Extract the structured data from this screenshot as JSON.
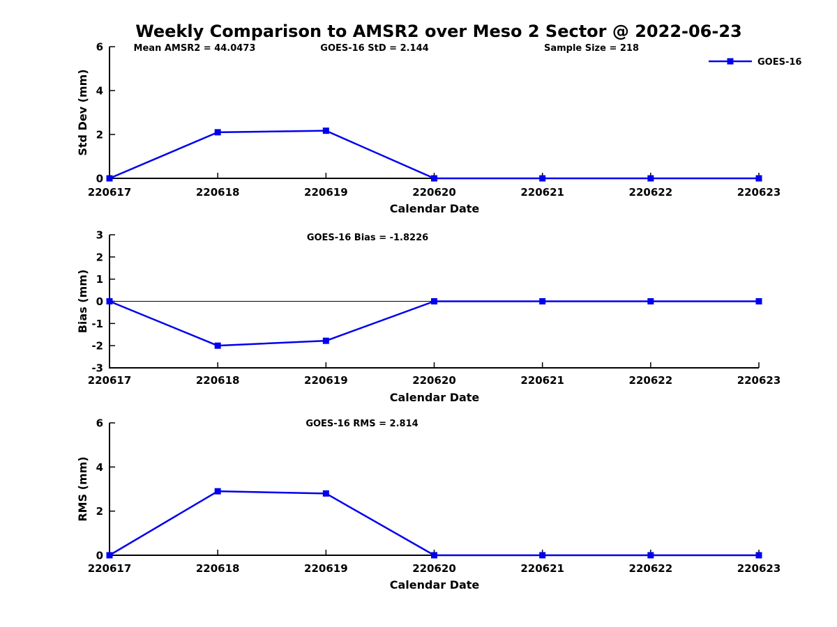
{
  "title": "Weekly Comparison to AMSR2 over Meso 2 Sector @ 2022-06-23",
  "legend": {
    "label": "GOES-16"
  },
  "colors": {
    "series": "#0000ee",
    "axis": "#000000",
    "text": "#000000",
    "background": "#ffffff"
  },
  "chart_data": [
    {
      "type": "line",
      "ylabel": "Std Dev (mm)",
      "xlabel": "Calendar Date",
      "ylim": [
        0,
        6
      ],
      "yticks": [
        "0",
        "2",
        "4",
        "6"
      ],
      "categories": [
        "220617",
        "220618",
        "220619",
        "220620",
        "220621",
        "220622",
        "220623"
      ],
      "series": [
        {
          "name": "GOES-16",
          "values": [
            0,
            2.1,
            2.17,
            0,
            0,
            0,
            0
          ]
        }
      ],
      "annotations": [
        "Mean AMSR2 = 44.0473",
        "GOES-16 StD = 2.144",
        "Sample Size = 218"
      ],
      "zero_line": false,
      "grid": false,
      "legend_position": "top-right"
    },
    {
      "type": "line",
      "ylabel": "Bias (mm)",
      "xlabel": "Calendar Date",
      "ylim": [
        -3,
        3
      ],
      "yticks": [
        "3",
        "2",
        "1",
        "0",
        "-1",
        "-2",
        "-3"
      ],
      "categories": [
        "220617",
        "220618",
        "220619",
        "220620",
        "220621",
        "220622",
        "220623"
      ],
      "series": [
        {
          "name": "GOES-16",
          "values": [
            0,
            -2.0,
            -1.78,
            0,
            0,
            0,
            0
          ]
        }
      ],
      "annotations": [
        "GOES-16 Bias  = -1.8226"
      ],
      "zero_line": true,
      "grid": false
    },
    {
      "type": "line",
      "ylabel": "RMS (mm)",
      "xlabel": "Calendar Date",
      "ylim": [
        0,
        6
      ],
      "yticks": [
        "0",
        "2",
        "4",
        "6"
      ],
      "categories": [
        "220617",
        "220618",
        "220619",
        "220620",
        "220621",
        "220622",
        "220623"
      ],
      "series": [
        {
          "name": "GOES-16",
          "values": [
            0,
            2.9,
            2.8,
            0,
            0,
            0,
            0
          ]
        }
      ],
      "annotations": [
        "GOES-16 RMS = 2.814"
      ],
      "zero_line": false,
      "grid": false
    }
  ]
}
